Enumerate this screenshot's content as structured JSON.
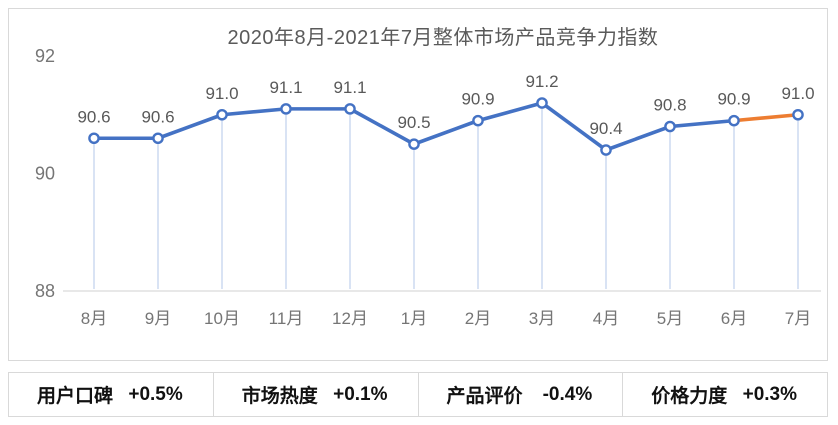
{
  "chart_data": {
    "type": "line",
    "title": "2020年8月-2021年7月整体市场产品竞争力指数",
    "categories": [
      "8月",
      "9月",
      "10月",
      "11月",
      "12月",
      "1月",
      "2月",
      "3月",
      "4月",
      "5月",
      "6月",
      "7月"
    ],
    "values": [
      90.6,
      90.6,
      91.0,
      91.1,
      91.1,
      90.5,
      90.9,
      91.2,
      90.4,
      90.8,
      90.9,
      91.0
    ],
    "ylim": [
      88,
      92
    ],
    "yticks": [
      88,
      90,
      92
    ],
    "gridlines": false,
    "legend_position": "none",
    "data_label_decimals": 1,
    "colors": {
      "line": "#4472C4",
      "last_segment_highlight": "#ED7D31",
      "marker_fill": "#ffffff",
      "drop_line": "#C9D7F0",
      "axis_line": "#d9d9d9",
      "data_label_text": "#595959",
      "tick_label_text": "#757575"
    },
    "highlight_segment_index": 10
  },
  "metrics": [
    {
      "label": "用户口碑",
      "value": "+0.5%"
    },
    {
      "label": "市场热度",
      "value": "+0.1%"
    },
    {
      "label": "产品评价",
      "value": "-0.4%"
    },
    {
      "label": "价格力度",
      "value": "+0.3%"
    }
  ]
}
